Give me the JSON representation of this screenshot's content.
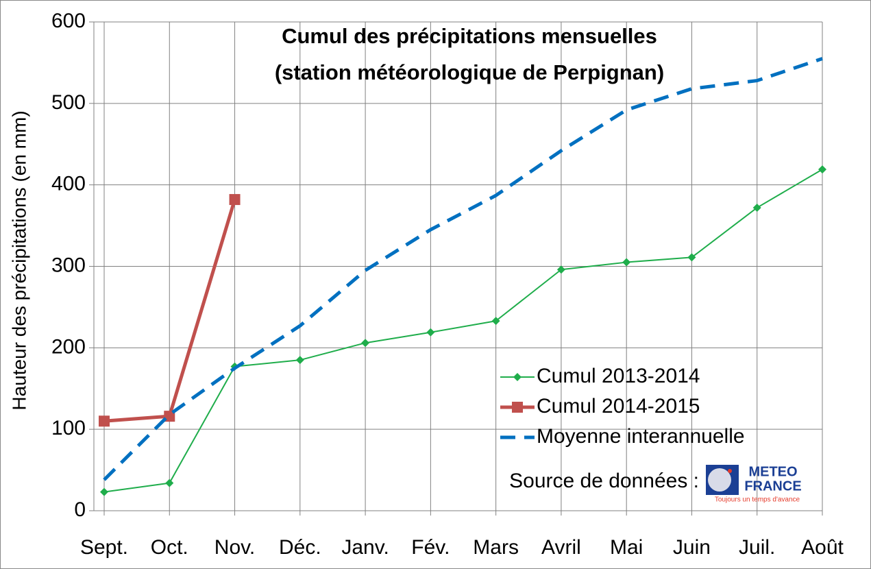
{
  "chart_data": {
    "type": "line",
    "title": [
      "Cumul des précipitations mensuelles",
      "(station météorologique de Perpignan)"
    ],
    "y_label": "Hauteur des précipitations (en mm)",
    "categories": [
      "Sept.",
      "Oct.",
      "Nov.",
      "Déc.",
      "Janv.",
      "Fév.",
      "Mars",
      "Avril",
      "Mai",
      "Juin",
      "Juil.",
      "Août"
    ],
    "series": [
      {
        "name": "Cumul 2013-2014",
        "color": "#1fad4b",
        "marker": "diamond",
        "values": [
          23,
          34,
          177,
          185,
          206,
          219,
          233,
          296,
          305,
          311,
          372,
          419
        ]
      },
      {
        "name": "Cumul 2014-2015",
        "color": "#c0504d",
        "marker": "square",
        "values": [
          110,
          116,
          382,
          null,
          null,
          null,
          null,
          null,
          null,
          null,
          null,
          null
        ]
      },
      {
        "name": "Moyenne interannuelle",
        "color": "#0070c0",
        "dashed": true,
        "values": [
          38,
          118,
          175,
          227,
          295,
          345,
          387,
          442,
          492,
          518,
          528,
          555
        ]
      }
    ],
    "ylim": [
      0,
      600
    ],
    "yticks": [
      0,
      100,
      200,
      300,
      400,
      500,
      600
    ],
    "grid": true,
    "legend": "lower right",
    "source": "Source de données :",
    "logo": {
      "line1": "METEO",
      "line2": "FRANCE",
      "slogan": "Toujours un temps d'avance"
    }
  }
}
